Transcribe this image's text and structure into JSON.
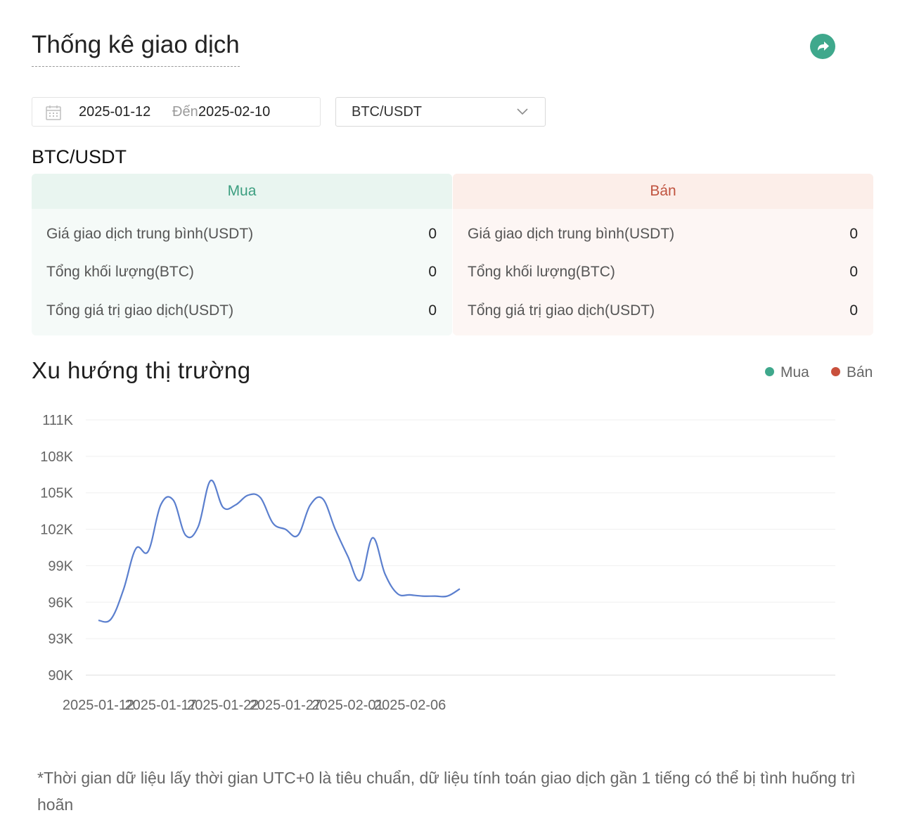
{
  "page": {
    "title": "Thống kê giao dịch",
    "share_icon": "share-arrow-icon",
    "accent": "#3fa88c"
  },
  "filters": {
    "date_start": "2025-01-12",
    "date_separator": "Đến",
    "date_end": "2025-02-10",
    "pair": "BTC/USDT"
  },
  "summary": {
    "pair": "BTC/USDT",
    "buy": {
      "header": "Mua",
      "color": "#3c9e80",
      "rows": [
        {
          "label": "Giá giao dịch trung bình(USDT)",
          "value": "0"
        },
        {
          "label": "Tổng khối lượng(BTC)",
          "value": "0"
        },
        {
          "label": "Tổng giá trị giao dịch(USDT)",
          "value": "0"
        }
      ]
    },
    "sell": {
      "header": "Bán",
      "color": "#c0533f",
      "rows": [
        {
          "label": "Giá giao dịch trung bình(USDT)",
          "value": "0"
        },
        {
          "label": "Tổng khối lượng(BTC)",
          "value": "0"
        },
        {
          "label": "Tổng giá trị giao dịch(USDT)",
          "value": "0"
        }
      ]
    }
  },
  "trend": {
    "title": "Xu hướng thị trường",
    "legend": [
      {
        "label": "Mua",
        "color": "#3fa88c"
      },
      {
        "label": "Bán",
        "color": "#c9503c"
      }
    ]
  },
  "chart_data": {
    "type": "line",
    "ylim": [
      90000,
      111000
    ],
    "y_ticks": [
      90000,
      93000,
      96000,
      99000,
      102000,
      105000,
      108000,
      111000
    ],
    "y_tick_labels": [
      "90K",
      "93K",
      "96K",
      "99K",
      "102K",
      "105K",
      "108K",
      "111K"
    ],
    "x_tick_labels": [
      "2025-01-12",
      "2025-01-17",
      "2025-01-22",
      "2025-01-27",
      "2025-02-01",
      "2025-02-06"
    ],
    "grid": true,
    "line_color": "#5b7fce",
    "series": [
      {
        "x": [
          "2025-01-12",
          "2025-01-13",
          "2025-01-14",
          "2025-01-15",
          "2025-01-16",
          "2025-01-17",
          "2025-01-18",
          "2025-01-19",
          "2025-01-20",
          "2025-01-21",
          "2025-01-22",
          "2025-01-23",
          "2025-01-24",
          "2025-01-25",
          "2025-01-26",
          "2025-01-27",
          "2025-01-28",
          "2025-01-29",
          "2025-01-30",
          "2025-01-31",
          "2025-02-01",
          "2025-02-02",
          "2025-02-03",
          "2025-02-04",
          "2025-02-05",
          "2025-02-06",
          "2025-02-07",
          "2025-02-08",
          "2025-02-09",
          "2025-02-10"
        ],
        "values": [
          94500,
          94600,
          97000,
          100400,
          100200,
          104000,
          104400,
          101500,
          102200,
          106000,
          103800,
          104000,
          104800,
          104600,
          102500,
          102000,
          101500,
          104000,
          104500,
          102000,
          99800,
          97800,
          101300,
          98300,
          96700,
          96600,
          96500,
          96500,
          96500,
          97100
        ]
      }
    ]
  },
  "footnote": "*Thời gian dữ liệu lấy thời gian UTC+0 là tiêu chuẩn, dữ liệu tính toán giao dịch gần 1 tiếng có thể bị tình huống trì hoãn"
}
